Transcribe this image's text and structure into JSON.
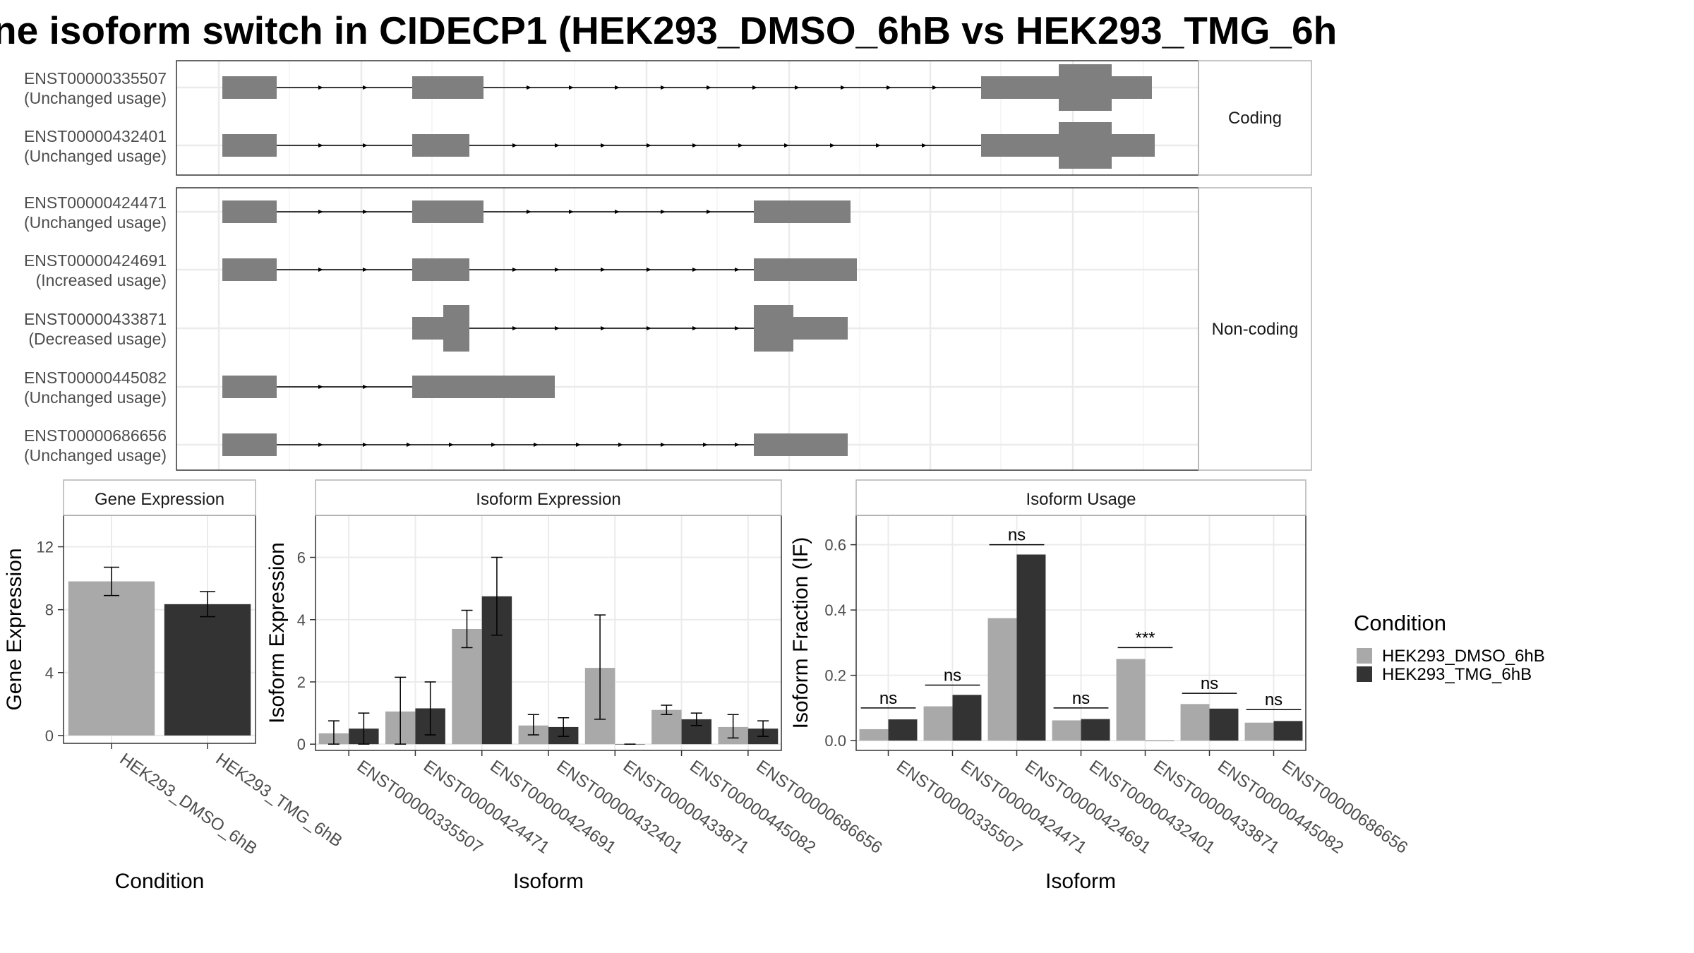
{
  "title": "ne isoform switch in CIDECP1 (HEK293_DMSO_6hB vs HEK293_TMG_6h",
  "colors": {
    "dmso": "#a9a9a9",
    "tmg": "#333333",
    "exon": "#7f7f7f",
    "grid": "#ebebeb",
    "panel_border": "#333333",
    "strip_border": "#b3b3b3"
  },
  "transcript_panels": [
    {
      "label": "Coding",
      "transcripts": [
        {
          "id": "ENST00000335507",
          "usage": "(Unchanged usage)"
        },
        {
          "id": "ENST00000432401",
          "usage": "(Unchanged usage)"
        }
      ]
    },
    {
      "label": "Non-coding",
      "transcripts": [
        {
          "id": "ENST00000424471",
          "usage": "(Unchanged usage)"
        },
        {
          "id": "ENST00000424691",
          "usage": "(Increased usage)"
        },
        {
          "id": "ENST00000433871",
          "usage": "(Decreased usage)"
        },
        {
          "id": "ENST00000445082",
          "usage": "(Unchanged usage)"
        },
        {
          "id": "ENST00000686656",
          "usage": "(Unchanged usage)"
        }
      ]
    }
  ],
  "chart_data": [
    {
      "type": "bar",
      "title": "Gene Expression",
      "xlabel": "Condition",
      "ylabel": "Gene Expression",
      "ylim": [
        -0.5,
        14
      ],
      "yticks": [
        0,
        4,
        8,
        12
      ],
      "categories": [
        "HEK293_DMSO_6hB",
        "HEK293_TMG_6hB"
      ],
      "values": [
        9.8,
        8.35
      ],
      "errors": [
        [
          8.9,
          10.7
        ],
        [
          7.55,
          9.15
        ]
      ]
    },
    {
      "type": "bar",
      "title": "Isoform Expression",
      "xlabel": "Isoform",
      "ylabel": "Isoform Expression",
      "ylim": [
        -0.2,
        7.35
      ],
      "yticks": [
        0,
        2,
        4,
        6
      ],
      "categories": [
        "ENST00000335507",
        "ENST00000424471",
        "ENST00000424691",
        "ENST00000432401",
        "ENST00000433871",
        "ENST00000445082",
        "ENST00000686656"
      ],
      "series": [
        {
          "name": "HEK293_DMSO_6hB",
          "values": [
            0.35,
            1.05,
            3.7,
            0.6,
            2.45,
            1.1,
            0.55
          ],
          "errors": [
            [
              0,
              0.75
            ],
            [
              0,
              2.15
            ],
            [
              3.1,
              4.3
            ],
            [
              0.3,
              0.95
            ],
            [
              0.8,
              4.15
            ],
            [
              0.95,
              1.25
            ],
            [
              0.2,
              0.95
            ]
          ]
        },
        {
          "name": "HEK293_TMG_6hB",
          "values": [
            0.5,
            1.15,
            4.75,
            0.55,
            0.0,
            0.8,
            0.5
          ],
          "errors": [
            [
              0,
              1.0
            ],
            [
              0.3,
              2.0
            ],
            [
              3.5,
              6.0
            ],
            [
              0.25,
              0.85
            ],
            [
              0,
              0
            ],
            [
              0.6,
              1.0
            ],
            [
              0.25,
              0.75
            ]
          ]
        }
      ]
    },
    {
      "type": "bar",
      "title": "Isoform Usage",
      "xlabel": "Isoform",
      "ylabel": "Isoform Fraction (IF)",
      "ylim": [
        -0.03,
        0.69
      ],
      "yticks": [
        "0.0",
        "0.2",
        "0.4",
        "0.6"
      ],
      "categories": [
        "ENST00000335507",
        "ENST00000424471",
        "ENST00000424691",
        "ENST00000432401",
        "ENST00000433871",
        "ENST00000445082",
        "ENST00000686656"
      ],
      "series": [
        {
          "name": "HEK293_DMSO_6hB",
          "values": [
            0.035,
            0.105,
            0.375,
            0.062,
            0.25,
            0.112,
            0.055
          ]
        },
        {
          "name": "HEK293_TMG_6hB",
          "values": [
            0.065,
            0.14,
            0.57,
            0.066,
            0.0,
            0.098,
            0.06
          ]
        }
      ],
      "significance": [
        "ns",
        "ns",
        "ns",
        "ns",
        "***",
        "ns",
        "ns"
      ],
      "significance_y": [
        0.1,
        0.17,
        0.6,
        0.1,
        0.285,
        0.145,
        0.095
      ]
    }
  ],
  "legend": {
    "title": "Condition",
    "items": [
      "HEK293_DMSO_6hB",
      "HEK293_TMG_6hB"
    ]
  }
}
